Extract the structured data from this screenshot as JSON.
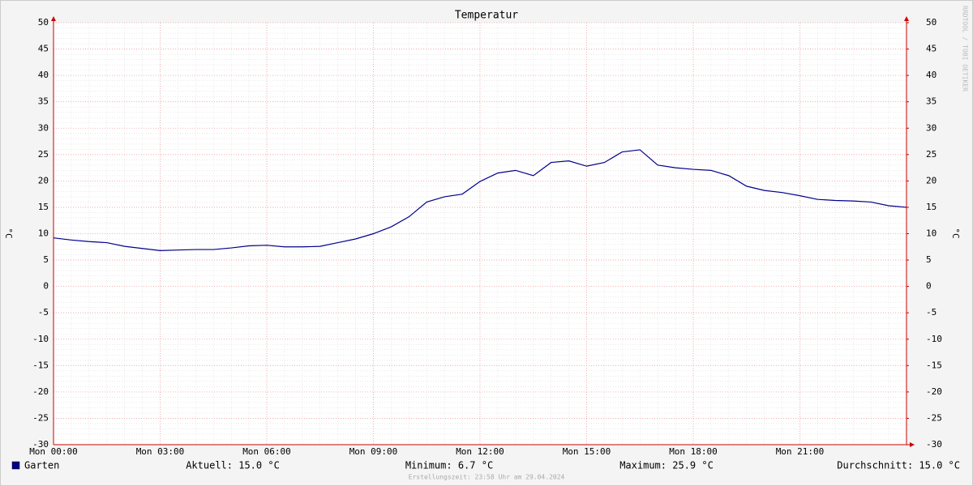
{
  "chart_data": {
    "type": "line",
    "title": "Temperatur",
    "ylabel": "°C",
    "y2label": "°C",
    "x": [
      0,
      0.5,
      1,
      1.5,
      2,
      2.5,
      3,
      3.5,
      4,
      4.5,
      5,
      5.5,
      6,
      6.5,
      7,
      7.5,
      8,
      8.5,
      9,
      9.5,
      10,
      10.5,
      11,
      11.5,
      12,
      12.5,
      13,
      13.5,
      14,
      14.5,
      15,
      15.5,
      16,
      16.5,
      17,
      17.5,
      18,
      18.5,
      19,
      19.5,
      20,
      20.5,
      21,
      21.5,
      22,
      22.5,
      23,
      23.5,
      24
    ],
    "series": [
      {
        "name": "Garten",
        "color": "#00008b",
        "values": [
          9.2,
          8.8,
          8.5,
          8.3,
          7.6,
          7.2,
          6.8,
          6.9,
          7.0,
          7.0,
          7.3,
          7.7,
          7.8,
          7.5,
          7.5,
          7.6,
          8.3,
          9.0,
          10.0,
          11.3,
          13.2,
          16.0,
          17.0,
          17.5,
          19.9,
          21.5,
          22.0,
          21.0,
          23.5,
          23.8,
          22.8,
          23.5,
          25.5,
          25.9,
          23.0,
          22.5,
          22.2,
          22.0,
          21.0,
          19.0,
          18.2,
          17.8,
          17.2,
          16.5,
          16.3,
          16.2,
          16.0,
          15.3,
          15.0
        ]
      }
    ],
    "xlim": [
      0,
      24
    ],
    "xticks": [
      {
        "value": 0,
        "label": "Mon 00:00"
      },
      {
        "value": 3,
        "label": "Mon 03:00"
      },
      {
        "value": 6,
        "label": "Mon 06:00"
      },
      {
        "value": 9,
        "label": "Mon 09:00"
      },
      {
        "value": 12,
        "label": "Mon 12:00"
      },
      {
        "value": 15,
        "label": "Mon 15:00"
      },
      {
        "value": 18,
        "label": "Mon 18:00"
      },
      {
        "value": 21,
        "label": "Mon 21:00"
      }
    ],
    "ylim": [
      -30,
      50
    ],
    "yticks": [
      -30,
      -25,
      -20,
      -15,
      -10,
      -5,
      0,
      5,
      10,
      15,
      20,
      25,
      30,
      35,
      40,
      45,
      50
    ],
    "y2lim": [
      -30,
      50
    ],
    "y2ticks": [
      -30,
      -25,
      -20,
      -15,
      -10,
      -5,
      0,
      5,
      10,
      15,
      20,
      25,
      30,
      35,
      40,
      45,
      50
    ],
    "grid": true,
    "stats": [
      "Aktuell: 15.0 °C",
      "Minimum: 6.7 °C",
      "Maximum: 25.9 °C",
      "Durchschnitt: 15.0 °C"
    ],
    "footer": "Erstellungszeit: 23:58 Uhr am 29.04.2024",
    "watermark": "RRDTOOL / TOBI OETIKER"
  }
}
